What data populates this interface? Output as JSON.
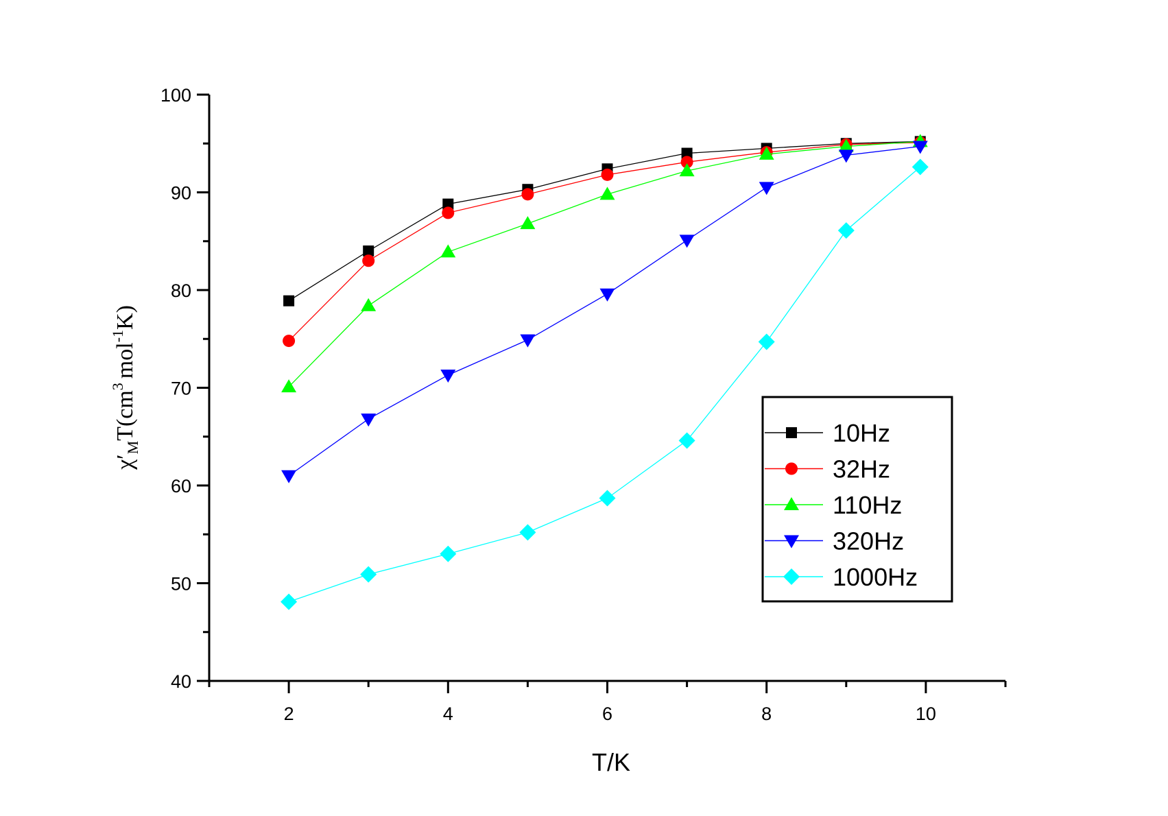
{
  "chart_data": {
    "type": "line",
    "title": "",
    "xlabel": "T/K",
    "ylabel": {
      "chi": "χ′",
      "sub": "M",
      "t_open": "T(cm",
      "sup1": "3",
      "mid": "mol",
      "sup2": "-1",
      "end": "K)"
    },
    "xlim": [
      1,
      11
    ],
    "ylim": [
      40,
      100
    ],
    "xticks": [
      2,
      4,
      6,
      8,
      10
    ],
    "xtick_labels": [
      "2",
      "4",
      "6",
      "8",
      "10"
    ],
    "yticks": [
      40,
      50,
      60,
      70,
      80,
      90,
      100
    ],
    "ytick_labels": [
      "40",
      "50",
      "60",
      "70",
      "80",
      "90",
      "100"
    ],
    "grid": false,
    "legend_position": "lower-right",
    "x": [
      2,
      3,
      4,
      5,
      6,
      7,
      8,
      9,
      9.93
    ],
    "series": [
      {
        "name": "10Hz",
        "color": "#000000",
        "marker": "square",
        "values": [
          78.9,
          84.0,
          88.8,
          90.3,
          92.4,
          94.0,
          94.5,
          95.0,
          95.2
        ]
      },
      {
        "name": "32Hz",
        "color": "#ff0000",
        "marker": "circle",
        "values": [
          74.8,
          83.0,
          87.9,
          89.8,
          91.8,
          93.1,
          94.1,
          94.9,
          95.1
        ]
      },
      {
        "name": "110Hz",
        "color": "#00ff00",
        "marker": "triangle-up",
        "values": [
          70.1,
          78.4,
          83.9,
          86.8,
          89.8,
          92.2,
          93.9,
          94.7,
          95.2
        ]
      },
      {
        "name": "320Hz",
        "color": "#0000ff",
        "marker": "triangle-down",
        "values": [
          61.0,
          66.8,
          71.3,
          74.9,
          79.6,
          85.1,
          90.5,
          93.8,
          94.7
        ]
      },
      {
        "name": "1000Hz",
        "color": "#00ffff",
        "marker": "diamond",
        "values": [
          48.1,
          50.9,
          53.0,
          55.2,
          58.7,
          64.6,
          74.7,
          86.1,
          92.6
        ]
      }
    ]
  }
}
